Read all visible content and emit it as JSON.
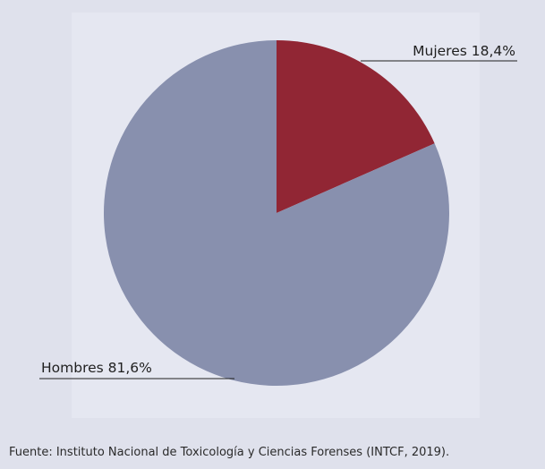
{
  "chart_data": {
    "type": "pie",
    "title": "",
    "slices": [
      {
        "label": "Mujeres",
        "value": 18.4,
        "label_text": "Mujeres 18,4%",
        "color": "#912634"
      },
      {
        "label": "Hombres",
        "value": 81.6,
        "label_text": "Hombres 81,6%",
        "color": "#8890ae"
      }
    ],
    "start_angle_deg": 0,
    "direction": "clockwise",
    "legend": "none"
  },
  "source_text": "Fuente: Instituto Nacional de Toxicología y Ciencias Forenses (INTCF, 2019).",
  "colors": {
    "background": "#dfe1ec",
    "plot_area": "#e5e7f1",
    "leader_line": "#1f1f1f"
  }
}
